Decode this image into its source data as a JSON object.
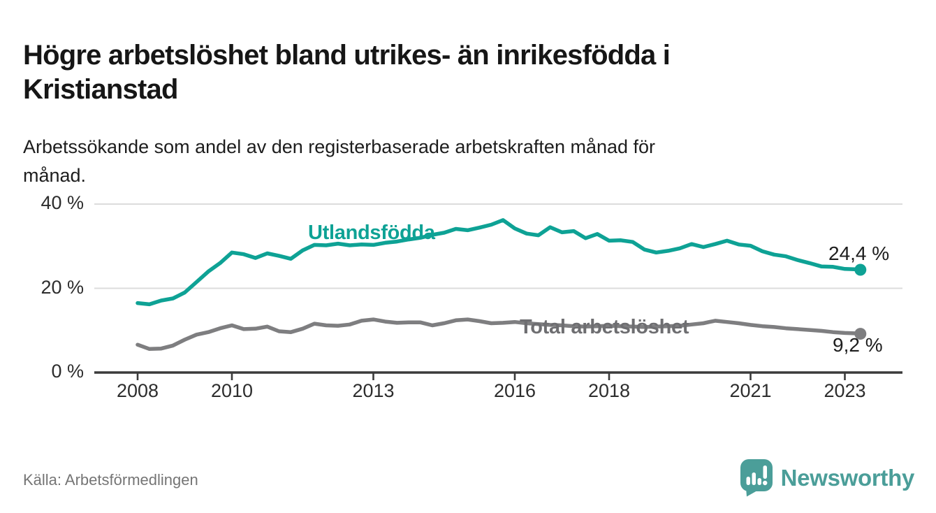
{
  "header": {
    "title": "Högre arbetslöshet bland utrikes- än inrikesfödda i\nKristianstad",
    "subtitle": "Arbetssökande som andel av den registerbaserade arbetskraften månad för\nmånad."
  },
  "footer": {
    "source": "Källa: Arbetsförmedlingen",
    "brand": "Newsworthy"
  },
  "icons": {
    "logo": "speech-bubble-bar-chart-icon"
  },
  "colors": {
    "foreign_born_line": "#0ea295",
    "total_line": "#7e7e80",
    "total_label": "#6e6e71",
    "brand_teal": "#4b9e99",
    "text": "#1d1d1d",
    "muted_text": "#757575",
    "axis_text": "#2d2d2d",
    "gridline": "#dcdcdc",
    "axis_line": "#3b3b3b"
  },
  "chart_data": {
    "type": "line",
    "title": "Högre arbetslöshet bland utrikes- än inrikesfödda i Kristianstad",
    "subtitle": "Arbetssökande som andel av den registerbaserade arbetskraften månad för månad.",
    "source": "Källa: Arbetsförmedlingen",
    "xlabel": "",
    "ylabel": "",
    "x_unit": "year",
    "y_unit": "%",
    "legend_position": "inline-labels",
    "grid": true,
    "x_axis": {
      "tick_values": [
        2008,
        2010,
        2013,
        2016,
        2018,
        2021,
        2023
      ],
      "tick_labels": [
        "2008",
        "2010",
        "2013",
        "2016",
        "2018",
        "2021",
        "2023"
      ],
      "range": [
        2008,
        2023.33
      ]
    },
    "y_axis": {
      "tick_values": [
        0,
        20,
        40
      ],
      "tick_labels": [
        "0 %",
        "20 %",
        "40 %"
      ],
      "range": [
        0,
        40
      ]
    },
    "x": [
      2008.0,
      2008.25,
      2008.5,
      2008.75,
      2009.0,
      2009.25,
      2009.5,
      2009.75,
      2010.0,
      2010.25,
      2010.5,
      2010.75,
      2011.0,
      2011.25,
      2011.5,
      2011.75,
      2012.0,
      2012.25,
      2012.5,
      2012.75,
      2013.0,
      2013.25,
      2013.5,
      2013.75,
      2014.0,
      2014.25,
      2014.5,
      2014.75,
      2015.0,
      2015.25,
      2015.5,
      2015.75,
      2016.0,
      2016.25,
      2016.5,
      2016.75,
      2017.0,
      2017.25,
      2017.5,
      2017.75,
      2018.0,
      2018.25,
      2018.5,
      2018.75,
      2019.0,
      2019.25,
      2019.5,
      2019.75,
      2020.0,
      2020.25,
      2020.5,
      2020.75,
      2021.0,
      2021.25,
      2021.5,
      2021.75,
      2022.0,
      2022.25,
      2022.5,
      2022.75,
      2023.0,
      2023.25,
      2023.33
    ],
    "series": [
      {
        "name": "Utlandsfödda",
        "color": "#0ea295",
        "end_label": "24,4 %",
        "end_value": 24.4,
        "values": [
          16.5,
          16.2,
          17.1,
          17.6,
          19.0,
          21.5,
          24.0,
          26.0,
          28.5,
          28.1,
          27.2,
          28.3,
          27.7,
          27.0,
          29.0,
          30.3,
          30.2,
          30.6,
          30.2,
          30.4,
          30.3,
          30.8,
          31.1,
          31.6,
          32.0,
          32.7,
          33.2,
          34.1,
          33.8,
          34.4,
          35.1,
          36.2,
          34.2,
          33.0,
          32.6,
          34.5,
          33.3,
          33.6,
          31.9,
          32.9,
          31.3,
          31.4,
          31.0,
          29.2,
          28.5,
          28.9,
          29.5,
          30.5,
          29.8,
          30.5,
          31.3,
          30.4,
          30.1,
          28.8,
          28.0,
          27.6,
          26.7,
          26.0,
          25.2,
          25.1,
          24.6,
          24.5,
          24.4
        ]
      },
      {
        "name": "Total arbetslöshet",
        "color": "#7e7e80",
        "end_label": "9,2 %",
        "end_value": 9.2,
        "values": [
          6.6,
          5.6,
          5.7,
          6.4,
          7.8,
          9.0,
          9.6,
          10.5,
          11.2,
          10.3,
          10.4,
          10.9,
          9.8,
          9.6,
          10.4,
          11.6,
          11.2,
          11.1,
          11.4,
          12.3,
          12.6,
          12.1,
          11.8,
          11.9,
          11.9,
          11.2,
          11.7,
          12.4,
          12.6,
          12.2,
          11.7,
          11.8,
          12.0,
          11.7,
          11.5,
          11.3,
          11.2,
          11.0,
          10.9,
          11.0,
          11.1,
          11.0,
          10.9,
          10.8,
          10.9,
          11.0,
          11.1,
          11.4,
          11.7,
          12.3,
          12.0,
          11.7,
          11.3,
          11.0,
          10.8,
          10.5,
          10.3,
          10.1,
          9.9,
          9.6,
          9.4,
          9.3,
          9.2
        ]
      }
    ]
  }
}
